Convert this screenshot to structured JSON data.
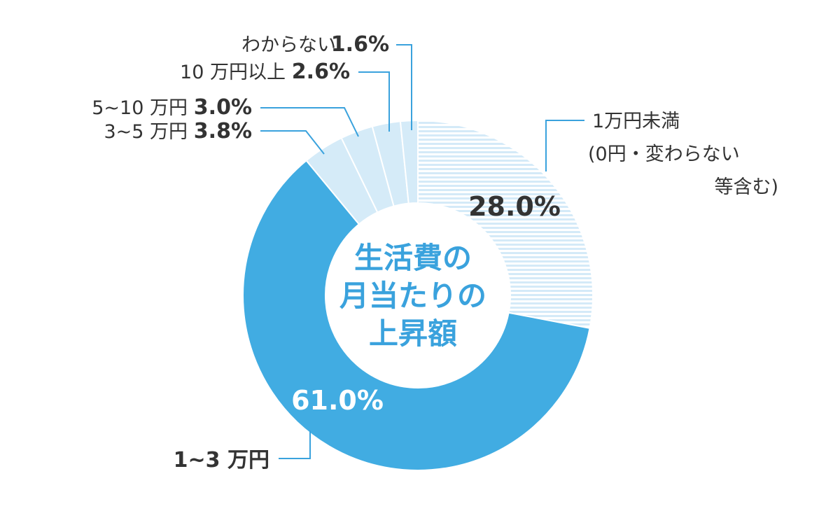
{
  "chart_data": {
    "type": "pie",
    "center_title": [
      "生活費の",
      "月当たりの",
      "上昇額"
    ],
    "slices": [
      {
        "label": "1万円未満",
        "sub": [
          "(0円・変わらない",
          "等含む)"
        ],
        "value": 28.0,
        "display": "28.0%",
        "color": "#dff0fa",
        "pattern": "horizontal-lines"
      },
      {
        "label": "1~3 万円",
        "value": 61.0,
        "display": "61.0%",
        "color": "#41ace2"
      },
      {
        "label": "3~5 万円",
        "value": 3.8,
        "display": "3.8%",
        "color": "#d5ebf8"
      },
      {
        "label": "5~10 万円",
        "value": 3.0,
        "display": "3.0%",
        "color": "#d5ebf8"
      },
      {
        "label": "10 万円以上",
        "value": 2.6,
        "display": "2.6%",
        "color": "#d5ebf8"
      },
      {
        "label": "わからない",
        "value": 1.6,
        "display": "1.6%",
        "color": "#d5ebf8"
      }
    ]
  }
}
